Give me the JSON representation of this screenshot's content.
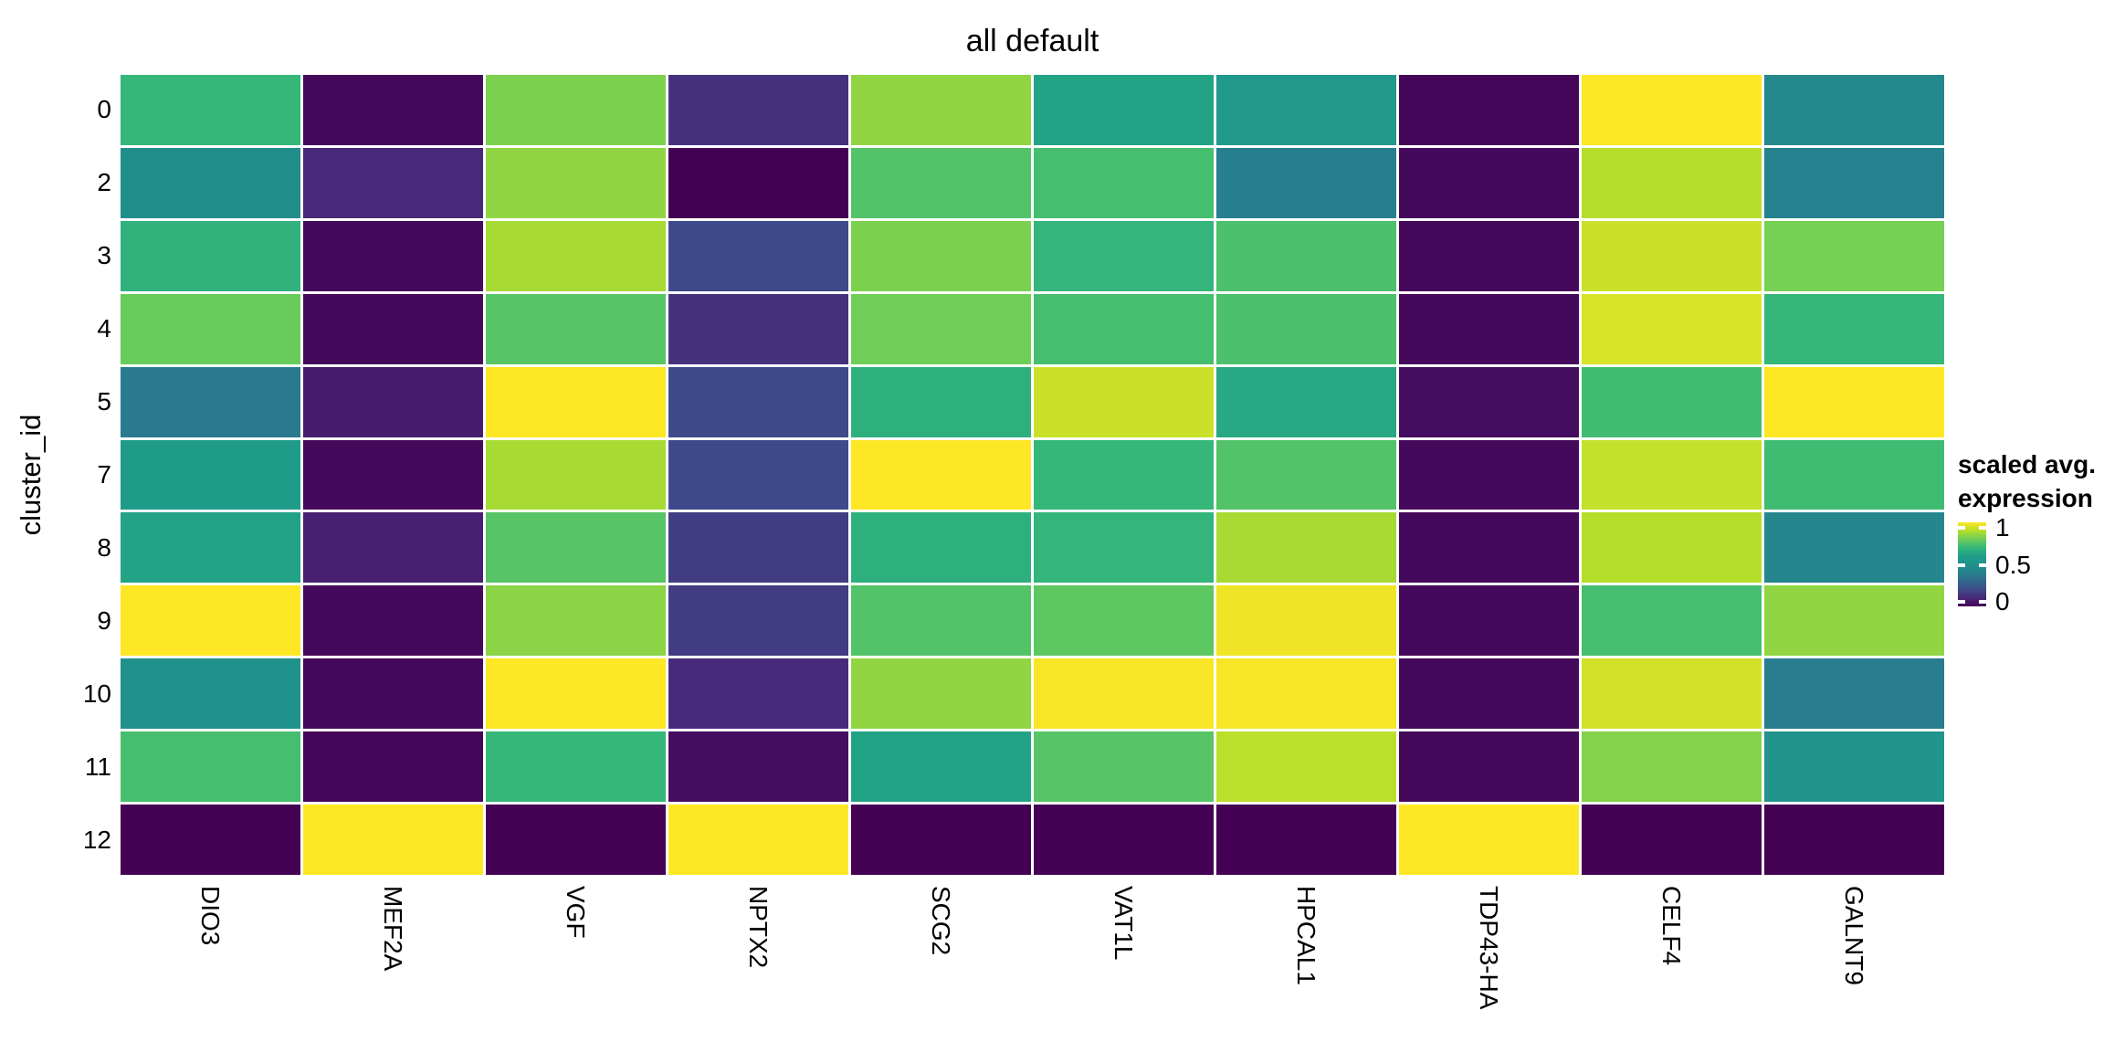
{
  "title": "all default",
  "y_axis": {
    "label": "cluster_id",
    "ticks": [
      "0",
      "2",
      "3",
      "4",
      "5",
      "7",
      "8",
      "9",
      "10",
      "11",
      "12"
    ]
  },
  "x_axis": {
    "ticks": [
      "DIO3",
      "MEF2A",
      "VGF",
      "NPTX2",
      "SCG2",
      "VAT1L",
      "HPCAL1",
      "TDP43-HA",
      "CELF4",
      "GALNT9"
    ]
  },
  "legend": {
    "title_line1": "scaled avg.",
    "title_line2": "expression",
    "tick_labels": [
      "1",
      "0.5",
      "0"
    ],
    "tick_positions_pct": [
      6.5,
      51,
      94.5
    ]
  },
  "chart_data": {
    "type": "heatmap",
    "title": "all default",
    "xlabel": "",
    "ylabel": "cluster_id",
    "columns": [
      "DIO3",
      "MEF2A",
      "VGF",
      "NPTX2",
      "SCG2",
      "VAT1L",
      "HPCAL1",
      "TDP43-HA",
      "CELF4",
      "GALNT9"
    ],
    "rows": [
      "0",
      "2",
      "3",
      "4",
      "5",
      "7",
      "8",
      "9",
      "10",
      "11",
      "12"
    ],
    "values": [
      [
        0.7,
        0.02,
        0.82,
        0.13,
        0.85,
        0.62,
        0.55,
        0.01,
        1.0,
        0.44
      ],
      [
        0.48,
        0.1,
        0.85,
        0.0,
        0.75,
        0.73,
        0.39,
        0.02,
        0.9,
        0.4
      ],
      [
        0.68,
        0.02,
        0.88,
        0.2,
        0.82,
        0.69,
        0.74,
        0.02,
        0.93,
        0.81
      ],
      [
        0.79,
        0.02,
        0.76,
        0.13,
        0.8,
        0.73,
        0.74,
        0.02,
        0.95,
        0.7
      ],
      [
        0.37,
        0.07,
        1.0,
        0.2,
        0.67,
        0.93,
        0.64,
        0.03,
        0.72,
        1.0
      ],
      [
        0.58,
        0.02,
        0.88,
        0.2,
        1.0,
        0.7,
        0.75,
        0.02,
        0.92,
        0.72
      ],
      [
        0.62,
        0.08,
        0.76,
        0.16,
        0.67,
        0.69,
        0.88,
        0.02,
        0.9,
        0.43
      ],
      [
        1.0,
        0.02,
        0.84,
        0.16,
        0.75,
        0.77,
        0.98,
        0.02,
        0.73,
        0.85
      ],
      [
        0.5,
        0.02,
        1.0,
        0.11,
        0.85,
        0.99,
        0.99,
        0.02,
        0.94,
        0.38
      ],
      [
        0.73,
        0.01,
        0.7,
        0.03,
        0.62,
        0.76,
        0.91,
        0.02,
        0.83,
        0.52
      ],
      [
        0.0,
        1.0,
        0.0,
        1.0,
        0.0,
        0.0,
        0.0,
        1.0,
        0.0,
        0.0
      ]
    ],
    "value_range": [
      0,
      1
    ],
    "legend_title": "scaled avg. expression",
    "legend_ticks": [
      1,
      0.5,
      0
    ],
    "colormap": "viridis",
    "colormap_anchors": [
      [
        "0.0",
        "#440154"
      ],
      [
        "0.1",
        "#482878"
      ],
      [
        "0.2",
        "#3e4a89"
      ],
      [
        "0.3",
        "#31688e"
      ],
      [
        "0.4",
        "#26828e"
      ],
      [
        "0.5",
        "#21918c"
      ],
      [
        "0.6",
        "#1f9e89"
      ],
      [
        "0.7",
        "#35b779"
      ],
      [
        "0.8",
        "#6ece58"
      ],
      [
        "0.9",
        "#b5de2b"
      ],
      [
        "1.0",
        "#fde725"
      ]
    ],
    "grid_gap_color": "#ffffff"
  }
}
